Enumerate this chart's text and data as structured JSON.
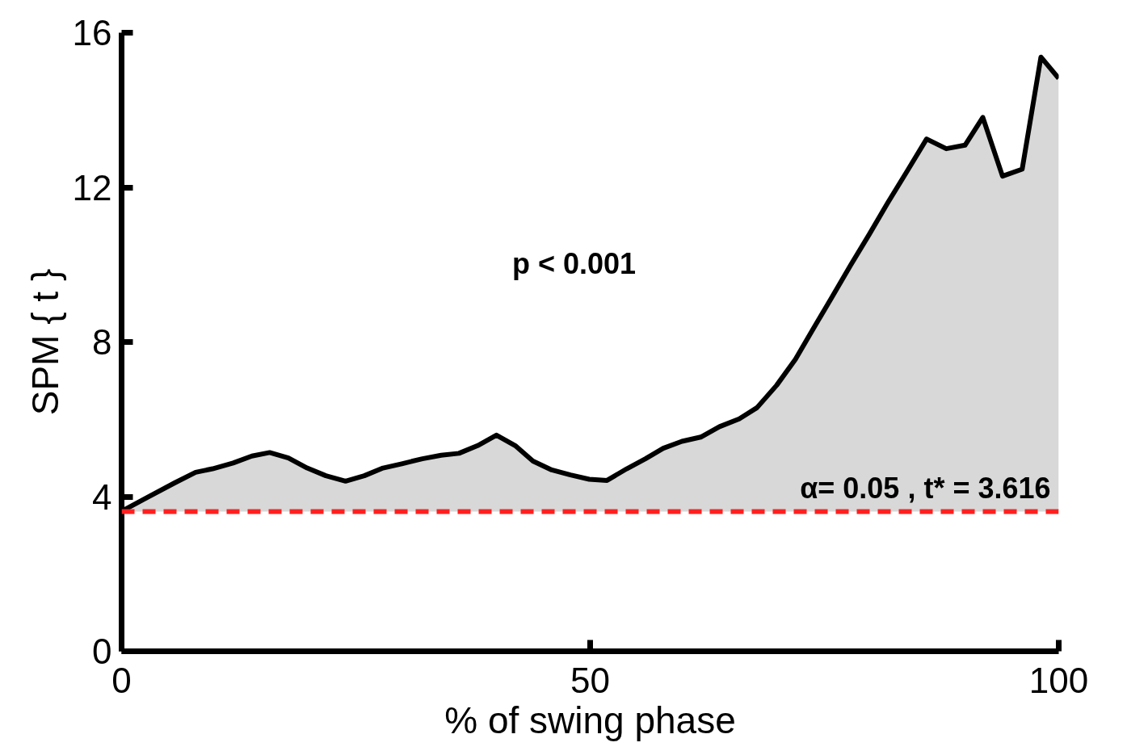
{
  "chart_data": {
    "type": "area",
    "xlabel": "% of swing phase",
    "ylabel": "SPM { t }",
    "x": [
      0,
      2.6,
      5.7,
      7.9,
      9.7,
      11.9,
      13.9,
      15.8,
      17.8,
      19.8,
      21.8,
      23.9,
      25.9,
      27.9,
      29.9,
      32.1,
      34.1,
      36.0,
      38.0,
      40.0,
      42.0,
      43.9,
      45.9,
      47.9,
      49.9,
      51.8,
      53.9,
      55.9,
      57.8,
      59.8,
      61.8,
      63.8,
      65.9,
      67.8,
      69.9,
      71.9,
      73.8,
      75.8,
      77.8,
      79.8,
      81.8,
      83.9,
      85.9,
      88.0,
      90.0,
      91.9,
      94.0,
      96.1,
      98.1,
      100
    ],
    "series": [
      {
        "color": "#000000",
        "values": [
          3.62,
          3.96,
          4.36,
          4.63,
          4.72,
          4.87,
          5.05,
          5.14,
          5.0,
          4.74,
          4.54,
          4.4,
          4.54,
          4.74,
          4.85,
          4.98,
          5.07,
          5.12,
          5.32,
          5.59,
          5.32,
          4.92,
          4.69,
          4.56,
          4.45,
          4.42,
          4.72,
          4.98,
          5.25,
          5.43,
          5.54,
          5.81,
          6.01,
          6.3,
          6.88,
          7.55,
          8.34,
          9.16,
          9.99,
          10.79,
          11.62,
          12.45,
          13.25,
          13.0,
          13.09,
          13.81,
          12.29,
          12.47,
          15.37,
          14.82
        ]
      }
    ],
    "xlim": [
      0,
      100
    ],
    "xticks": [
      0,
      50,
      100
    ],
    "ylim": [
      0,
      16
    ],
    "yticks": [
      0,
      4,
      8,
      12,
      16
    ],
    "ref_lines": [
      {
        "axis": "y",
        "value": 3.616,
        "label": "α= 0.05 , t* = 3.616",
        "color": "#ff2020",
        "line_style": "dashed"
      }
    ],
    "annotations": [
      "p < 0.001"
    ],
    "grid": false
  }
}
